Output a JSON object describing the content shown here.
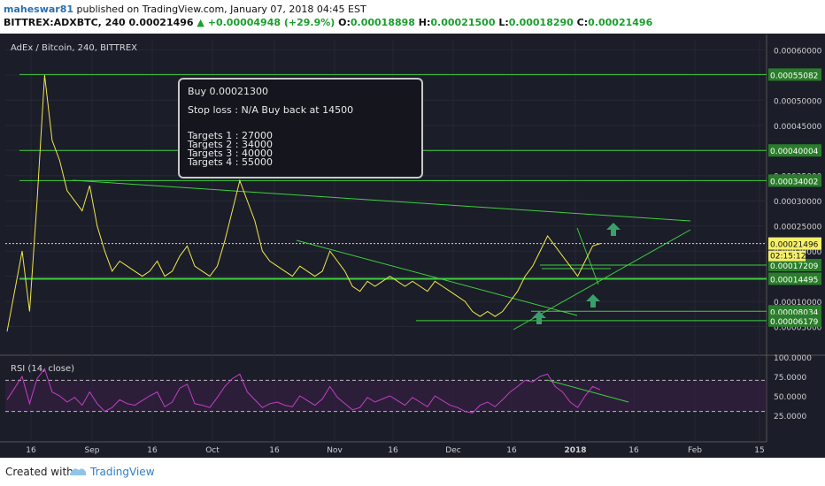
{
  "header": {
    "author": "maheswar81",
    "published": "published on TradingView.com, January 07, 2018 04:45 EST",
    "symbol_line_prefix": "BITTREX:ADXBTC, 240",
    "last": "0.00021496",
    "change": "+0.00004948 (+29.9%)",
    "o_label": "O:",
    "o": "0.00018898",
    "h_label": "H:",
    "h": "0.00021500",
    "l_label": "L:",
    "l": "0.00018290",
    "c_label": "C:",
    "c": "0.00021496"
  },
  "footer": {
    "created_with": "Created with",
    "brand": "TradingView"
  },
  "annotation": {
    "buy": "Buy 0.00021300",
    "stop": "Stop loss : N/A   Buy back at 14500",
    "targets": [
      "Targets 1 : 27000",
      "Targets 2 : 34000",
      "Targets 3 : 40000",
      "Targets 4 : 55000"
    ]
  },
  "colors": {
    "background": "#1b1d29",
    "price_line": "#f0e84a",
    "trendline": "#3fcf3f",
    "rsi_line": "#c33fc3",
    "arrow": "#3aa06a",
    "label_bg": "#2a7d2a"
  },
  "chart_data": [
    {
      "type": "line",
      "title": "AdEx / Bitcoin, 240, BITTREX",
      "x_ticks": [
        "16",
        "Sep",
        "16",
        "Oct",
        "16",
        "Nov",
        "16",
        "Dec",
        "16",
        "2018",
        "16",
        "Feb",
        "15"
      ],
      "y_ticks": [
        "0.00060000",
        "0.00055000",
        "0.00050000",
        "0.00045000",
        "0.00040000",
        "0.00035000",
        "0.00030000",
        "0.00025000",
        "0.00020000",
        "0.00015000",
        "0.00010000",
        "0.00005000"
      ],
      "ylim": [
        0.0,
        0.00062
      ],
      "current_price": "0.00021496",
      "countdown": "02:15:12",
      "horizontal_levels": [
        "0.00055082",
        "0.00040004",
        "0.00034002",
        "0.00017209",
        "0.00014495",
        "0.00008034",
        "0.00006179"
      ],
      "series": [
        {
          "name": "",
          "x": [
            0,
            1,
            2,
            3,
            4,
            5,
            6,
            7,
            8,
            9,
            10,
            11,
            12,
            13,
            14,
            15,
            16,
            17,
            18,
            19,
            20,
            21,
            22,
            23,
            24,
            25,
            26,
            27,
            28,
            29,
            30,
            31,
            32,
            33,
            34,
            35,
            36,
            37,
            38,
            39,
            40,
            41,
            42,
            43,
            44,
            45,
            46,
            47,
            48,
            49,
            50,
            51,
            52,
            53,
            54,
            55,
            56,
            57,
            58,
            59,
            60,
            61,
            62,
            63,
            64,
            65,
            66,
            67,
            68,
            69,
            70,
            71,
            72,
            73,
            74,
            75,
            76,
            77,
            78,
            79
          ],
          "values": [
            4e-05,
            0.00012,
            0.0002,
            8e-05,
            0.0003,
            0.00055,
            0.00042,
            0.00038,
            0.00032,
            0.0003,
            0.00028,
            0.00033,
            0.00025,
            0.0002,
            0.00016,
            0.00018,
            0.00017,
            0.00016,
            0.00015,
            0.00016,
            0.00018,
            0.00015,
            0.00016,
            0.00019,
            0.00021,
            0.00017,
            0.00016,
            0.00015,
            0.00017,
            0.00022,
            0.00028,
            0.00034,
            0.0003,
            0.00026,
            0.0002,
            0.00018,
            0.00017,
            0.00016,
            0.00015,
            0.00017,
            0.00016,
            0.00015,
            0.00016,
            0.0002,
            0.00018,
            0.00016,
            0.00013,
            0.00012,
            0.00014,
            0.00013,
            0.00014,
            0.00015,
            0.00014,
            0.00013,
            0.00014,
            0.00013,
            0.00012,
            0.00014,
            0.00013,
            0.00012,
            0.00011,
            0.0001,
            8e-05,
            7e-05,
            8e-05,
            7e-05,
            8e-05,
            0.0001,
            0.00012,
            0.00015,
            0.00017,
            0.0002,
            0.00023,
            0.00021,
            0.00019,
            0.00017,
            0.00015,
            0.00018,
            0.00021,
            0.00021496
          ]
        }
      ]
    },
    {
      "type": "line",
      "title": "RSI (14, close)",
      "y_ticks": [
        "100.0000",
        "75.0000",
        "50.0000",
        "25.0000"
      ],
      "ylim": [
        0,
        100
      ],
      "bands": [
        70,
        30
      ],
      "series": [
        {
          "name": "",
          "x": [
            0,
            1,
            2,
            3,
            4,
            5,
            6,
            7,
            8,
            9,
            10,
            11,
            12,
            13,
            14,
            15,
            16,
            17,
            18,
            19,
            20,
            21,
            22,
            23,
            24,
            25,
            26,
            27,
            28,
            29,
            30,
            31,
            32,
            33,
            34,
            35,
            36,
            37,
            38,
            39,
            40,
            41,
            42,
            43,
            44,
            45,
            46,
            47,
            48,
            49,
            50,
            51,
            52,
            53,
            54,
            55,
            56,
            57,
            58,
            59,
            60,
            61,
            62,
            63,
            64,
            65,
            66,
            67,
            68,
            69,
            70,
            71,
            72,
            73,
            74,
            75,
            76,
            77,
            78,
            79
          ],
          "values": [
            45,
            60,
            75,
            40,
            72,
            85,
            55,
            50,
            42,
            48,
            38,
            55,
            40,
            30,
            35,
            45,
            40,
            38,
            44,
            50,
            55,
            36,
            42,
            60,
            65,
            40,
            38,
            35,
            48,
            62,
            72,
            78,
            55,
            45,
            35,
            40,
            42,
            38,
            36,
            50,
            44,
            38,
            46,
            62,
            48,
            40,
            32,
            35,
            48,
            42,
            46,
            50,
            44,
            38,
            48,
            42,
            36,
            50,
            44,
            38,
            35,
            30,
            28,
            38,
            42,
            36,
            45,
            55,
            62,
            70,
            68,
            75,
            78,
            62,
            55,
            42,
            35,
            50,
            62,
            58
          ]
        }
      ]
    }
  ]
}
